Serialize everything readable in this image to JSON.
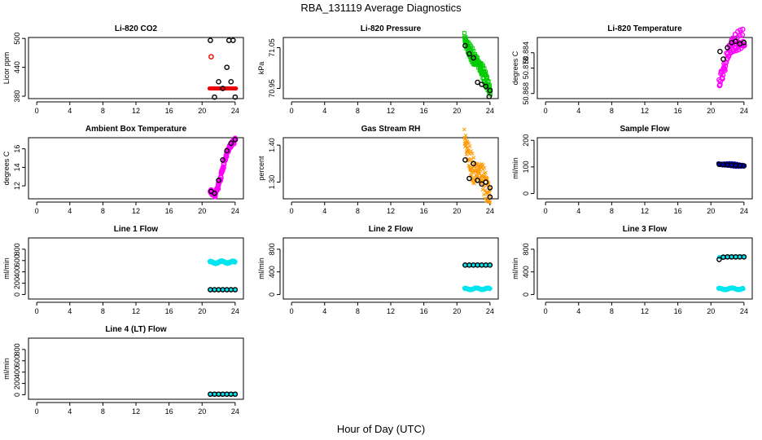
{
  "figure": {
    "title": "RBA_131119  Average Diagnostics",
    "xlabel": "Hour of Day (UTC)"
  },
  "chart_data": [
    {
      "type": "scatter",
      "title": "Li-820 CO2",
      "ylabel": "Licor ppm",
      "xlim": [
        -1,
        25
      ],
      "ylim": [
        375,
        502
      ],
      "xticks": [
        0,
        4,
        8,
        12,
        16,
        20,
        24
      ],
      "xtick_labels": [
        "0",
        "4",
        "8",
        "12",
        "16",
        "20",
        "24"
      ],
      "yticks": [
        380,
        440,
        500
      ],
      "ytick_labels": [
        "380",
        "440",
        "500"
      ],
      "series": [
        {
          "name": "detail",
          "color": "#ee0000",
          "marker": "small",
          "step": 0.1,
          "x_range": [
            20.9,
            24.1
          ],
          "y": [
            396,
            396
          ]
        },
        {
          "name": "outlier",
          "color": "#ee0000",
          "marker": "circle",
          "x": [
            21.1
          ],
          "y": [
            462
          ]
        },
        {
          "name": "average",
          "color": "#000000",
          "marker": "circle",
          "x": [
            21.0,
            21.5,
            22.0,
            22.5,
            23.0,
            23.25,
            23.5,
            23.75,
            24.0
          ],
          "y": [
            496,
            378,
            410,
            396,
            440,
            496,
            410,
            496,
            378
          ]
        }
      ]
    },
    {
      "type": "scatter",
      "title": "Li-820 Pressure",
      "ylabel": "kPa",
      "xlim": [
        -1,
        25
      ],
      "ylim": [
        70.925,
        71.075
      ],
      "xticks": [
        0,
        4,
        8,
        12,
        16,
        20,
        24
      ],
      "xtick_labels": [
        "0",
        "4",
        "8",
        "12",
        "16",
        "20",
        "24"
      ],
      "yticks": [
        70.95,
        71.05
      ],
      "ytick_labels": [
        "70.95",
        "71.05"
      ],
      "series": [
        {
          "name": "detail",
          "color": "#00cc00",
          "marker": "square",
          "step": 0.05,
          "x_range": [
            20.9,
            24.05
          ],
          "curve": [
            [
              20.9,
              71.075
            ],
            [
              21.2,
              71.055
            ],
            [
              21.6,
              71.035
            ],
            [
              22.0,
              71.025
            ],
            [
              22.5,
              71.015
            ],
            [
              23.0,
              70.995
            ],
            [
              23.5,
              70.975
            ],
            [
              24.0,
              70.945
            ]
          ],
          "spread": 0.012
        },
        {
          "name": "average",
          "color": "#000000",
          "marker": "circle",
          "x": [
            21.0,
            21.5,
            22.0,
            22.5,
            23.0,
            23.5,
            24.0,
            23.9
          ],
          "y": [
            71.055,
            71.035,
            71.025,
            70.965,
            70.96,
            70.955,
            70.945,
            70.93
          ]
        }
      ]
    },
    {
      "type": "scatter",
      "title": "Li-820 Temperature",
      "ylabel": "degrees C",
      "xlim": [
        -1,
        25
      ],
      "ylim": [
        50.866,
        50.89
      ],
      "xticks": [
        0,
        4,
        8,
        12,
        16,
        20,
        24
      ],
      "xtick_labels": [
        "0",
        "4",
        "8",
        "12",
        "16",
        "20",
        "24"
      ],
      "yticks": [
        50.868,
        50.878,
        50.884
      ],
      "ytick_labels": [
        "50.868",
        "50.878",
        "50.884"
      ],
      "series": [
        {
          "name": "detail",
          "color": "#ff00ff",
          "marker": "circle",
          "step": 0.1,
          "x_range": [
            21.0,
            24.0
          ],
          "curve": [
            [
              21.0,
              50.873
            ],
            [
              21.4,
              50.876
            ],
            [
              21.7,
              50.879
            ],
            [
              22.0,
              50.883
            ],
            [
              22.5,
              50.887
            ],
            [
              23.0,
              50.888
            ],
            [
              24.0,
              50.889
            ]
          ],
          "spread": 0.0025
        },
        {
          "name": "average",
          "color": "#000000",
          "marker": "circle",
          "x": [
            21.1,
            21.5,
            22.0,
            22.5,
            23.0,
            23.5,
            24.0
          ],
          "y": [
            50.8845,
            50.8815,
            50.886,
            50.888,
            50.8885,
            50.8875,
            50.888
          ]
        }
      ]
    },
    {
      "type": "scatter",
      "title": "Ambient Box Temperature",
      "ylabel": "degrees C",
      "xlim": [
        -1,
        25
      ],
      "ylim": [
        10.6,
        17.2
      ],
      "xticks": [
        0,
        4,
        8,
        12,
        16,
        20,
        24
      ],
      "xtick_labels": [
        "0",
        "4",
        "8",
        "12",
        "16",
        "20",
        "24"
      ],
      "yticks": [
        12,
        14,
        16
      ],
      "ytick_labels": [
        "12",
        "14",
        "16"
      ],
      "series": [
        {
          "name": "detail",
          "color": "#ff00ff",
          "marker": "circle",
          "step": 0.06,
          "x_range": [
            21.0,
            24.0
          ],
          "curve": [
            [
              21.0,
              11.4
            ],
            [
              21.5,
              11.0
            ],
            [
              21.8,
              11.6
            ],
            [
              22.2,
              12.8
            ],
            [
              22.6,
              14.3
            ],
            [
              23.0,
              15.6
            ],
            [
              23.5,
              16.5
            ],
            [
              24.0,
              17.0
            ]
          ],
          "spread": 0.15
        },
        {
          "name": "average",
          "color": "#000000",
          "marker": "circle",
          "x": [
            21.1,
            21.5,
            22.0,
            22.5,
            23.0,
            23.5,
            24.0
          ],
          "y": [
            11.4,
            11.2,
            12.6,
            14.8,
            15.8,
            16.6,
            17.0
          ]
        }
      ]
    },
    {
      "type": "scatter",
      "title": "Gas Stream RH",
      "ylabel": "percent",
      "xlim": [
        -1,
        25
      ],
      "ylim": [
        1.255,
        1.42
      ],
      "xticks": [
        0,
        4,
        8,
        12,
        16,
        20,
        24
      ],
      "xtick_labels": [
        "0",
        "4",
        "8",
        "12",
        "16",
        "20",
        "24"
      ],
      "yticks": [
        1.3,
        1.4
      ],
      "ytick_labels": [
        "1.30",
        "1.40"
      ],
      "series": [
        {
          "name": "detail",
          "color": "#ff9900",
          "marker": "cross",
          "step": 0.05,
          "x_range": [
            20.9,
            24.0
          ],
          "curve": [
            [
              20.9,
              1.42
            ],
            [
              21.3,
              1.38
            ],
            [
              21.7,
              1.34
            ],
            [
              22.2,
              1.325
            ],
            [
              22.7,
              1.33
            ],
            [
              23.2,
              1.31
            ],
            [
              23.7,
              1.285
            ],
            [
              24.0,
              1.26
            ]
          ],
          "spread": 0.025
        },
        {
          "name": "average",
          "color": "#000000",
          "marker": "circle",
          "x": [
            21.0,
            21.5,
            22.0,
            22.5,
            23.0,
            23.5,
            24.0,
            24.0
          ],
          "y": [
            1.36,
            1.31,
            1.35,
            1.305,
            1.295,
            1.3,
            1.285,
            1.26
          ]
        }
      ]
    },
    {
      "type": "scatter",
      "title": "Sample Flow",
      "ylabel": "ml/min",
      "xlim": [
        -1,
        25
      ],
      "ylim": [
        -20,
        210
      ],
      "xticks": [
        0,
        4,
        8,
        12,
        16,
        20,
        24
      ],
      "xtick_labels": [
        "0",
        "4",
        "8",
        "12",
        "16",
        "20",
        "24"
      ],
      "yticks": [
        0,
        100,
        200
      ],
      "ytick_labels": [
        "0",
        "100",
        "200"
      ],
      "series": [
        {
          "name": "detail",
          "color": "#0000aa",
          "marker": "small",
          "step": 0.1,
          "x_range": [
            20.9,
            24.0
          ],
          "y": [
            110,
            104
          ],
          "spread": 4
        },
        {
          "name": "average",
          "color": "#000000",
          "marker": "circle",
          "x": [
            21.0,
            21.5,
            22.0,
            22.5,
            23.0,
            23.5,
            24.0
          ],
          "y": [
            110,
            109,
            108,
            107,
            106,
            105,
            104
          ]
        }
      ]
    },
    {
      "type": "scatter",
      "title": "Line 1 Flow",
      "ylabel": "ml/min",
      "xlim": [
        -1,
        25
      ],
      "ylim": [
        -80,
        1000
      ],
      "xticks": [
        0,
        4,
        8,
        12,
        16,
        20,
        24
      ],
      "xtick_labels": [
        "0",
        "4",
        "8",
        "12",
        "16",
        "20",
        "24"
      ],
      "yticks": [
        0,
        200,
        400,
        600,
        800
      ],
      "ytick_labels": [
        "0",
        "200",
        "400",
        "600",
        "800"
      ],
      "series": [
        {
          "name": "detail-high",
          "color": "#00e5ee",
          "marker": "small",
          "step": 0.08,
          "x_range": [
            20.9,
            24.0
          ],
          "y": [
            570,
            570
          ],
          "spread": 20
        },
        {
          "name": "detail-low",
          "color": "#00e5ee",
          "marker": "small",
          "step": 0.1,
          "x_range": [
            20.9,
            24.0
          ],
          "y": [
            85,
            85
          ]
        },
        {
          "name": "average",
          "color": "#000000",
          "marker": "circle",
          "x": [
            21.0,
            21.5,
            22.0,
            22.5,
            23.0,
            23.5,
            24.0
          ],
          "y": [
            85,
            85,
            85,
            85,
            85,
            85,
            85
          ]
        }
      ]
    },
    {
      "type": "scatter",
      "title": "Line 2 Flow",
      "ylabel": "ml/min",
      "xlim": [
        -1,
        25
      ],
      "ylim": [
        -80,
        1000
      ],
      "xticks": [
        0,
        4,
        8,
        12,
        16,
        20,
        24
      ],
      "xtick_labels": [
        "0",
        "4",
        "8",
        "12",
        "16",
        "20",
        "24"
      ],
      "yticks": [
        0,
        400,
        800
      ],
      "ytick_labels": [
        "0",
        "400",
        "800"
      ],
      "series": [
        {
          "name": "detail-high",
          "color": "#00e5ee",
          "marker": "small",
          "step": 0.1,
          "x_range": [
            20.9,
            24.0
          ],
          "y": [
            520,
            520
          ]
        },
        {
          "name": "detail-low",
          "color": "#00e5ee",
          "marker": "small",
          "step": 0.08,
          "x_range": [
            20.9,
            24.0
          ],
          "y": [
            100,
            100
          ],
          "spread": 15
        },
        {
          "name": "average",
          "color": "#000000",
          "marker": "circle",
          "x": [
            21.0,
            21.5,
            22.0,
            22.5,
            23.0,
            23.5,
            24.0
          ],
          "y": [
            520,
            520,
            520,
            520,
            520,
            520,
            520
          ]
        }
      ]
    },
    {
      "type": "scatter",
      "title": "Line 3 Flow",
      "ylabel": "ml/min",
      "xlim": [
        -1,
        25
      ],
      "ylim": [
        -80,
        1000
      ],
      "xticks": [
        0,
        4,
        8,
        12,
        16,
        20,
        24
      ],
      "xtick_labels": [
        "0",
        "4",
        "8",
        "12",
        "16",
        "20",
        "24"
      ],
      "yticks": [
        0,
        400,
        800
      ],
      "ytick_labels": [
        "0",
        "400",
        "800"
      ],
      "series": [
        {
          "name": "detail-high",
          "color": "#00e5ee",
          "marker": "small",
          "step": 0.1,
          "x_range": [
            21.0,
            24.0
          ],
          "y": [
            660,
            670
          ]
        },
        {
          "name": "detail-low",
          "color": "#00e5ee",
          "marker": "small",
          "step": 0.08,
          "x_range": [
            20.9,
            23.9
          ],
          "y": [
            100,
            100
          ],
          "spread": 15
        },
        {
          "name": "average",
          "color": "#000000",
          "marker": "circle",
          "x": [
            21.0,
            21.5,
            22.0,
            22.5,
            23.0,
            23.5,
            24.0
          ],
          "y": [
            620,
            660,
            665,
            665,
            665,
            665,
            665
          ]
        }
      ]
    },
    {
      "type": "scatter",
      "title": "Line 4 (LT) Flow",
      "ylabel": "ml/min",
      "xlim": [
        -1,
        25
      ],
      "ylim": [
        -80,
        1000
      ],
      "xticks": [
        0,
        4,
        8,
        12,
        16,
        20,
        24
      ],
      "xtick_labels": [
        "0",
        "4",
        "8",
        "12",
        "16",
        "20",
        "24"
      ],
      "yticks": [
        0,
        200,
        400,
        600,
        800
      ],
      "ytick_labels": [
        "0",
        "200",
        "400",
        "600",
        "800"
      ],
      "series": [
        {
          "name": "detail",
          "color": "#00e5ee",
          "marker": "small",
          "step": 0.1,
          "x_range": [
            21.0,
            24.0
          ],
          "y": [
            10,
            10
          ]
        },
        {
          "name": "average",
          "color": "#000000",
          "marker": "circle",
          "x": [
            21.0,
            21.5,
            22.0,
            22.5,
            23.0,
            23.5,
            24.0
          ],
          "y": [
            10,
            10,
            10,
            10,
            10,
            10,
            10
          ]
        }
      ]
    }
  ]
}
